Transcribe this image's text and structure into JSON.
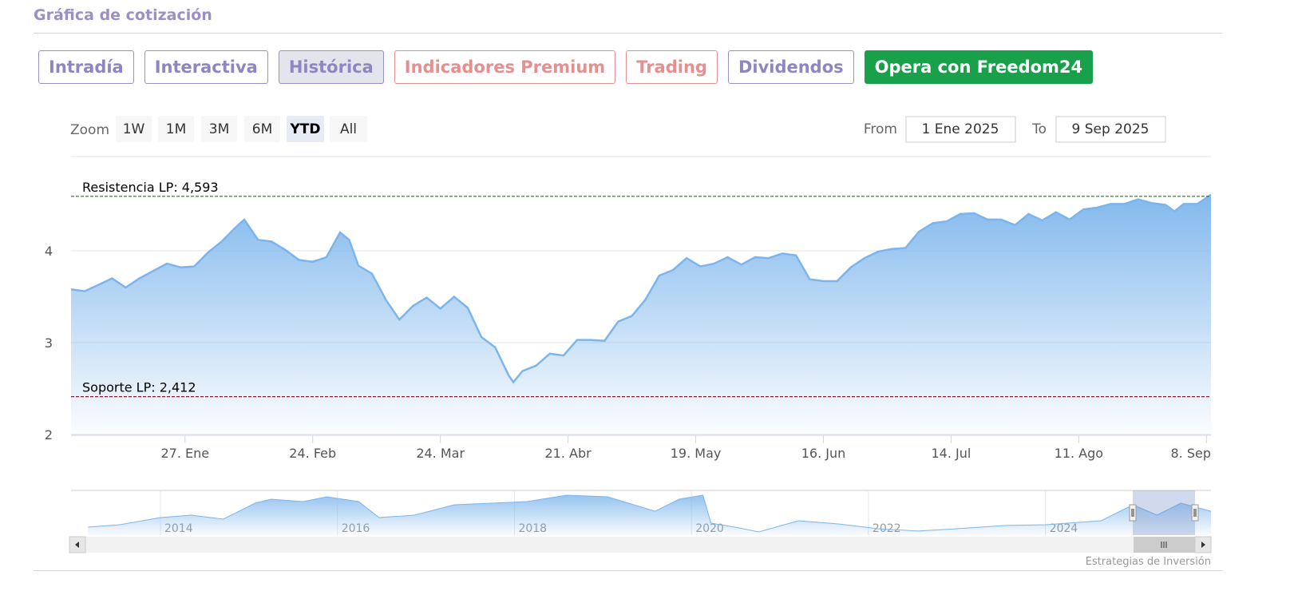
{
  "header": {
    "title": "Gráfica de cotización"
  },
  "tabs": [
    "Intradía",
    "Interactiva",
    "Histórica",
    "Indicadores Premium",
    "Trading",
    "Dividendos",
    "Opera con Freedom24"
  ],
  "range_selector": {
    "label": "Zoom",
    "buttons": [
      "1W",
      "1M",
      "3M",
      "6M",
      "YTD",
      "All"
    ],
    "from_label": "From",
    "from": "1 Ene 2025",
    "to_label": "To",
    "to": "9 Sep 2025"
  },
  "chart_data": {
    "type": "area",
    "color": "#7cb5ec",
    "x": [
      "2025-01-02",
      "2025-01-05",
      "2025-01-08",
      "2025-01-11",
      "2025-01-14",
      "2025-01-17",
      "2025-01-20",
      "2025-01-23",
      "2025-01-26",
      "2025-01-29",
      "2025-02-01",
      "2025-02-04",
      "2025-02-07",
      "2025-02-09",
      "2025-02-12",
      "2025-02-15",
      "2025-02-18",
      "2025-02-21",
      "2025-02-24",
      "2025-02-27",
      "2025-03-02",
      "2025-03-04",
      "2025-03-06",
      "2025-03-09",
      "2025-03-12",
      "2025-03-15",
      "2025-03-18",
      "2025-03-21",
      "2025-03-24",
      "2025-03-27",
      "2025-03-30",
      "2025-04-02",
      "2025-04-05",
      "2025-04-08",
      "2025-04-09",
      "2025-04-11",
      "2025-04-14",
      "2025-04-17",
      "2025-04-20",
      "2025-04-23",
      "2025-04-26",
      "2025-04-29",
      "2025-05-02",
      "2025-05-05",
      "2025-05-08",
      "2025-05-11",
      "2025-05-14",
      "2025-05-17",
      "2025-05-20",
      "2025-05-23",
      "2025-05-26",
      "2025-05-29",
      "2025-06-01",
      "2025-06-04",
      "2025-06-07",
      "2025-06-10",
      "2025-06-13",
      "2025-06-16",
      "2025-06-19",
      "2025-06-22",
      "2025-06-25",
      "2025-06-28",
      "2025-07-01",
      "2025-07-04",
      "2025-07-07",
      "2025-07-10",
      "2025-07-13",
      "2025-07-16",
      "2025-07-19",
      "2025-07-22",
      "2025-07-25",
      "2025-07-28",
      "2025-07-31",
      "2025-08-03",
      "2025-08-06",
      "2025-08-09",
      "2025-08-12",
      "2025-08-15",
      "2025-08-18",
      "2025-08-21",
      "2025-08-24",
      "2025-08-27",
      "2025-08-30",
      "2025-09-01",
      "2025-09-03",
      "2025-09-06",
      "2025-09-09"
    ],
    "values": [
      3.58,
      3.56,
      3.63,
      3.7,
      3.6,
      3.7,
      3.78,
      3.86,
      3.82,
      3.83,
      3.98,
      4.1,
      4.25,
      4.34,
      4.12,
      4.1,
      4.01,
      3.9,
      3.88,
      3.93,
      4.2,
      4.12,
      3.84,
      3.75,
      3.47,
      3.25,
      3.4,
      3.49,
      3.37,
      3.5,
      3.38,
      3.06,
      2.95,
      2.64,
      2.57,
      2.69,
      2.75,
      2.88,
      2.86,
      3.03,
      3.03,
      3.02,
      3.23,
      3.29,
      3.47,
      3.73,
      3.79,
      3.92,
      3.83,
      3.86,
      3.93,
      3.85,
      3.93,
      3.92,
      3.97,
      3.95,
      3.69,
      3.67,
      3.67,
      3.82,
      3.92,
      3.99,
      4.02,
      4.03,
      4.21,
      4.3,
      4.32,
      4.4,
      4.41,
      4.34,
      4.34,
      4.28,
      4.4,
      4.33,
      4.42,
      4.34,
      4.45,
      4.47,
      4.51,
      4.51,
      4.56,
      4.52,
      4.5,
      4.43,
      4.51,
      4.51,
      4.61
    ],
    "xlim": [
      "2025-01-02",
      "2025-09-09"
    ],
    "xticks": [
      {
        "value": "2025-01-27",
        "label": "27. Ene"
      },
      {
        "value": "2025-02-24",
        "label": "24. Feb"
      },
      {
        "value": "2025-03-24",
        "label": "24. Mar"
      },
      {
        "value": "2025-04-21",
        "label": "21. Abr"
      },
      {
        "value": "2025-05-19",
        "label": "19. May"
      },
      {
        "value": "2025-06-16",
        "label": "16. Jun"
      },
      {
        "value": "2025-07-14",
        "label": "14. Jul"
      },
      {
        "value": "2025-08-11",
        "label": "11. Ago"
      },
      {
        "value": "2025-09-08",
        "label": "8. Sep"
      }
    ],
    "ylim": [
      2,
      5
    ],
    "yticks": [
      2,
      3,
      4
    ],
    "grid": true,
    "plot_lines": [
      {
        "value": 4.593,
        "label": "Resistencia LP: 4,593",
        "color": "#1e7b1e"
      },
      {
        "value": 2.412,
        "label": "Soporte LP: 2,412",
        "color": "#8b1a2b"
      }
    ],
    "navigator": {
      "x": [
        2013.18,
        2013.54,
        2014.0,
        2014.35,
        2014.71,
        2015.07,
        2015.25,
        2015.61,
        2015.88,
        2016.24,
        2016.47,
        2016.87,
        2017.32,
        2017.77,
        2018.14,
        2018.59,
        2019.05,
        2019.59,
        2019.86,
        2020.13,
        2020.22,
        2020.49,
        2020.76,
        2021.21,
        2021.66,
        2022.11,
        2022.56,
        2023.0,
        2023.55,
        2024.0,
        2024.63,
        2024.99,
        2025.26,
        2025.53,
        2025.87
      ],
      "values": [
        2.57,
        2.74,
        3.26,
        3.43,
        3.14,
        4.29,
        4.57,
        4.4,
        4.74,
        4.4,
        3.26,
        3.43,
        4.17,
        4.29,
        4.4,
        4.86,
        4.74,
        3.71,
        4.57,
        4.86,
        2.86,
        2.57,
        2.23,
        3.03,
        2.8,
        2.46,
        2.29,
        2.46,
        2.69,
        2.74,
        3.03,
        4.17,
        3.43,
        4.29,
        3.71
      ],
      "xlim": [
        2012.99,
        2025.87
      ],
      "ylim": [
        2,
        5.2
      ],
      "xticks": [
        2014,
        2016,
        2018,
        2020,
        2022,
        2024
      ]
    },
    "credits": "Estrategias de Inversión"
  }
}
